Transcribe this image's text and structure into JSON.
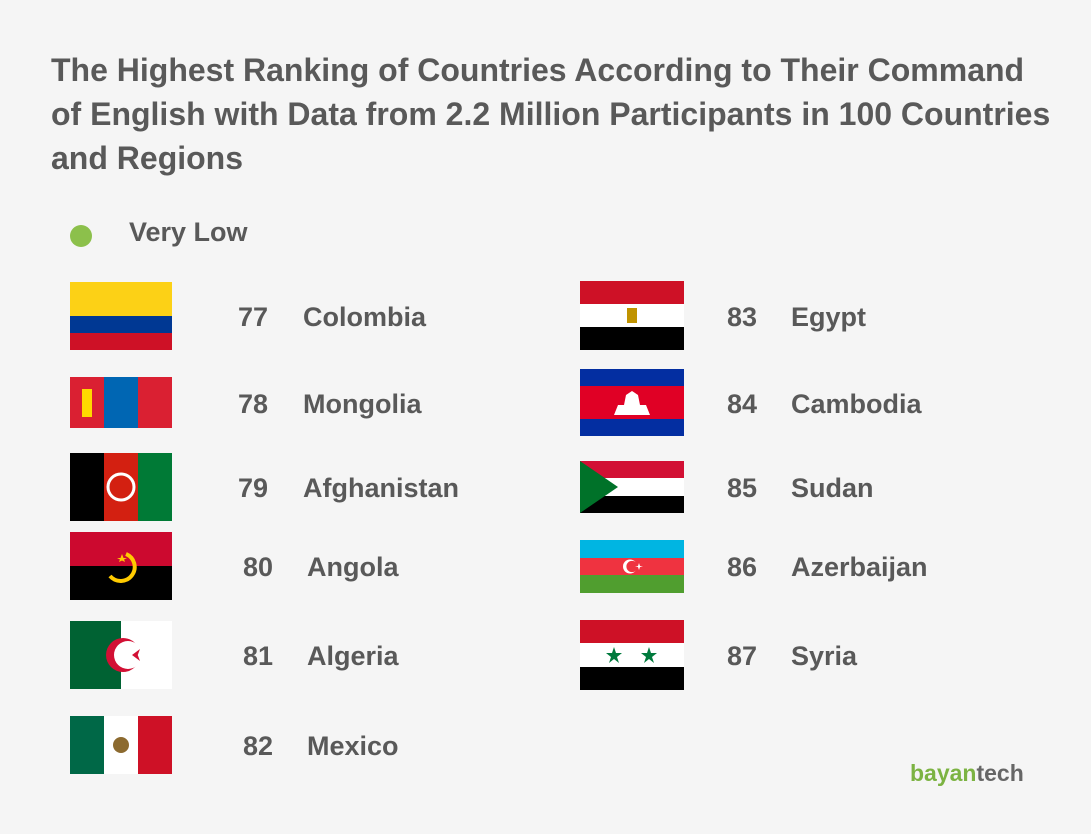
{
  "title": "The Highest Ranking of Countries According to Their Command of English with Data from 2.2 Million Participants in 100 Countries and Regions",
  "legend": {
    "label": "Very Low"
  },
  "countries": [
    {
      "rank": 77,
      "name": "Colombia"
    },
    {
      "rank": 78,
      "name": "Mongolia"
    },
    {
      "rank": 79,
      "name": "Afghanistan"
    },
    {
      "rank": 80,
      "name": "Angola"
    },
    {
      "rank": 81,
      "name": "Algeria"
    },
    {
      "rank": 82,
      "name": "Mexico"
    },
    {
      "rank": 83,
      "name": "Egypt"
    },
    {
      "rank": 84,
      "name": "Cambodia"
    },
    {
      "rank": 85,
      "name": "Sudan"
    },
    {
      "rank": 86,
      "name": "Azerbaijan"
    },
    {
      "rank": 87,
      "name": "Syria"
    }
  ],
  "logo": {
    "brand": "bayan",
    "suffix": "tech"
  }
}
